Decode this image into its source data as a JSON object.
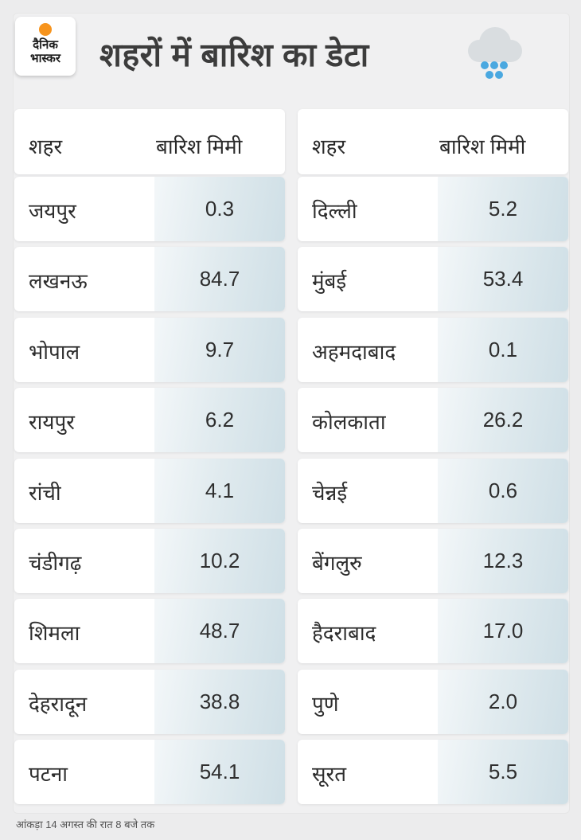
{
  "logo": {
    "line1": "दैनिक",
    "line2": "भास्कर"
  },
  "title": "शहरों में बारिश का डेटा",
  "headers": {
    "city": "शहर",
    "rain": "बारिश मिमी"
  },
  "left": [
    {
      "city": "जयपुर",
      "value": "0.3"
    },
    {
      "city": "लखनऊ",
      "value": "84.7"
    },
    {
      "city": "भोपाल",
      "value": "9.7"
    },
    {
      "city": "रायपुर",
      "value": "6.2"
    },
    {
      "city": "रांची",
      "value": "4.1"
    },
    {
      "city": "चंडीगढ़",
      "value": "10.2"
    },
    {
      "city": "शिमला",
      "value": "48.7"
    },
    {
      "city": "देहरादून",
      "value": "38.8"
    },
    {
      "city": "पटना",
      "value": "54.1"
    }
  ],
  "right": [
    {
      "city": "दिल्ली",
      "value": "5.2"
    },
    {
      "city": "मुंबई",
      "value": "53.4"
    },
    {
      "city": "अहमदाबाद",
      "value": "0.1"
    },
    {
      "city": "कोलकाता",
      "value": "26.2"
    },
    {
      "city": "चेन्नई",
      "value": "0.6"
    },
    {
      "city": "बेंगलुरु",
      "value": "12.3"
    },
    {
      "city": "हैदराबाद",
      "value": "17.0"
    },
    {
      "city": "पुणे",
      "value": "2.0"
    },
    {
      "city": "सूरत",
      "value": "5.5"
    }
  ],
  "footnote": "आंकड़ा 14 अगस्त की रात 8 बजे तक",
  "colors": {
    "logo_dot": "#f7941d",
    "cloud": "#d9dde0",
    "rain_drop": "#4aa8e0",
    "value_cell": "#cfdfe6"
  }
}
